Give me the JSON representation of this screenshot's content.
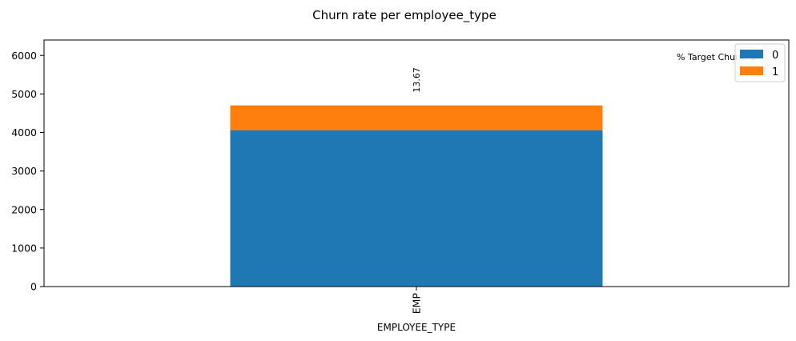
{
  "chart_data": {
    "type": "bar",
    "stacked": true,
    "title": "Churn rate per employee_type",
    "xlabel": "EMPLOYEE_TYPE",
    "ylabel": "",
    "categories": [
      "EMP"
    ],
    "series": [
      {
        "name": "0",
        "values": [
          4060
        ],
        "color": "#1f77b4"
      },
      {
        "name": "1",
        "values": [
          643
        ],
        "color": "#ff7f0e"
      }
    ],
    "bar_labels": [
      "13.67"
    ],
    "annotation": "% Target Churn: 1",
    "ylim": [
      0,
      6400
    ],
    "yticks": [
      0,
      1000,
      2000,
      3000,
      4000,
      5000,
      6000
    ],
    "grid": false,
    "legend_position": "top-right"
  }
}
